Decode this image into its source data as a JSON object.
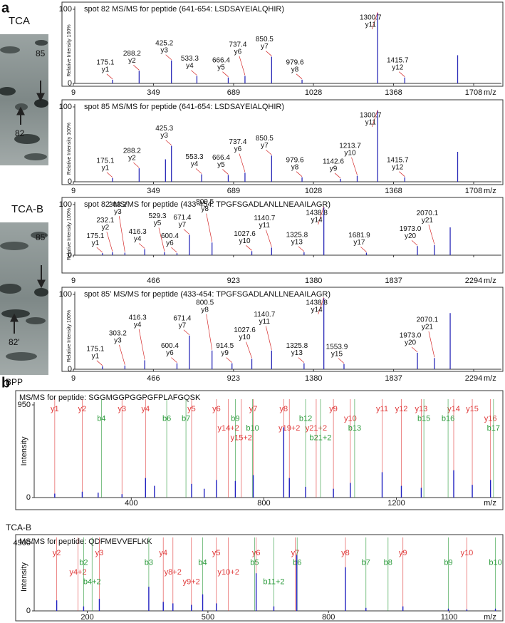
{
  "figure": {
    "panel_a": "a",
    "panel_b": "b",
    "gel_top": {
      "label": "TCA",
      "spots": [
        "85",
        "82"
      ]
    },
    "gel_bottom": {
      "label": "TCA-B",
      "spots": [
        "85'",
        "82'"
      ]
    }
  },
  "chart_data": [
    {
      "type": "spectrum",
      "title": "spot 82 MS/MS for peptide (641-654: LSDSAYEIALQHIR)",
      "xlabel": "m/z",
      "ylabel": "Relative Intensity 100%",
      "color": "#2b2bb8",
      "label_color": "#d42a2a",
      "xlim": [
        9,
        1708
      ],
      "xticks": [
        9,
        349,
        689,
        1028,
        1368,
        1708
      ],
      "ylim": [
        0,
        100
      ],
      "yticks": [
        0,
        100
      ],
      "x": [
        175.1,
        288.2,
        425.2,
        533.3,
        666.4,
        737.4,
        850.5,
        979.6,
        1300.7,
        1415.7,
        1640
      ],
      "x_labels": [
        "175.1",
        "288.2",
        "425.2",
        "533.3",
        "666.4",
        "737.4",
        "850.5",
        "979.6",
        "1300.7",
        "1415.7",
        null
      ],
      "values": [
        5,
        17,
        31,
        10,
        8,
        10,
        36,
        5,
        95,
        8,
        38
      ],
      "annotations": [
        "y1",
        "y2",
        "y3",
        "y4",
        "y5",
        "y6",
        "y7",
        "y8",
        "y11",
        "y12",
        null
      ]
    },
    {
      "type": "spectrum",
      "title": "spot 85 MS/MS for peptide (641-654: LSDSAYEIALQHIR)",
      "xlabel": "m/z",
      "ylabel": "Relative Intensity 100%",
      "color": "#2b2bb8",
      "label_color": "#d42a2a",
      "xlim": [
        9,
        1708
      ],
      "xticks": [
        9,
        349,
        689,
        1028,
        1368,
        1708
      ],
      "ylim": [
        0,
        100
      ],
      "yticks": [
        0,
        100
      ],
      "x": [
        175.1,
        288.2,
        400,
        425.3,
        553.3,
        666.4,
        737.4,
        850.5,
        979.6,
        1142.6,
        1213.7,
        1300.7,
        1415.7,
        1640
      ],
      "x_labels": [
        "175.1",
        "288.2",
        null,
        "425.3",
        "553.3",
        "666.4",
        "737.4",
        "850.5",
        "979.6",
        "1142.6",
        "1213.7",
        "1300.7",
        "1415.7",
        null
      ],
      "values": [
        5,
        18,
        30,
        48,
        10,
        9,
        12,
        35,
        6,
        4,
        8,
        95,
        6,
        40
      ],
      "annotations": [
        "y1",
        "y2",
        null,
        "y3",
        "y4",
        "y5",
        "y6",
        "y7",
        "y8",
        "y9",
        "y10",
        "y11",
        "y12",
        null
      ]
    },
    {
      "type": "spectrum",
      "title": "spot 82’ MS/MS for peptide (433-454: TPGFSGADLANLLNEAAILAGR)",
      "xlabel": "m/z",
      "ylabel": "Relative Intensity 100%",
      "color": "#2b2bb8",
      "label_color": "#d42a2a",
      "xlim": [
        9,
        2294
      ],
      "xticks": [
        9,
        466,
        923,
        1380,
        1837,
        2294
      ],
      "ylim": [
        0,
        100
      ],
      "yticks": [
        0,
        100
      ],
      "x": [
        175.1,
        232.1,
        303.2,
        416.3,
        529.3,
        600.4,
        671.4,
        800.5,
        1027.6,
        1140.7,
        1325.8,
        1438.8,
        1681.9,
        1973.0,
        2070.1,
        2160
      ],
      "x_labels": [
        "175.1",
        "232.1",
        "303.2",
        "416.3",
        "529.3",
        "600.4",
        "671.4",
        "800.5",
        "1027.6",
        "1140.7",
        "1325.8",
        "1438.8",
        "1681.9",
        "1973.0",
        "2070.1",
        null
      ],
      "values": [
        4,
        6,
        5,
        12,
        6,
        4,
        40,
        25,
        8,
        15,
        6,
        95,
        5,
        18,
        20,
        55
      ],
      "annotations": [
        "y1",
        "y2",
        "y3",
        "y4",
        "y5",
        "y6",
        "y7",
        "y8",
        "y10",
        "y11",
        "y13",
        "y14",
        "y17",
        "y20",
        "y21",
        null
      ]
    },
    {
      "type": "spectrum",
      "title": "spot 85’ MS/MS for peptide (433-454: TPGFSGADLANLLNEAAILAGR)",
      "xlabel": "m/z",
      "ylabel": "Relative Intensity 100%",
      "color": "#2b2bb8",
      "label_color": "#d42a2a",
      "xlim": [
        9,
        2294
      ],
      "xticks": [
        9,
        466,
        923,
        1380,
        1837,
        2294
      ],
      "ylim": [
        0,
        100
      ],
      "yticks": [
        0,
        100
      ],
      "x": [
        175.1,
        303.2,
        416.3,
        600.4,
        671.4,
        800.5,
        914.5,
        1027.6,
        1140.7,
        1325.8,
        1438.8,
        1553.9,
        1973.0,
        2070.1,
        2160
      ],
      "x_labels": [
        "175.1",
        "303.2",
        "416.3",
        "600.4",
        "671.4",
        "800.5",
        "914.5",
        "1027.6",
        "1140.7",
        "1325.8",
        "1438.8",
        "1553.9",
        "1973.0",
        "2070.1",
        null
      ],
      "values": [
        4,
        5,
        12,
        8,
        45,
        25,
        8,
        14,
        25,
        8,
        95,
        7,
        22,
        15,
        75
      ],
      "annotations": [
        "y1",
        "y3",
        "y4",
        "y6",
        "y7",
        "y8",
        "y9",
        "y10",
        "y11",
        "y13",
        "y14",
        "y15",
        "y20",
        "y21",
        null
      ]
    },
    {
      "type": "ion_spectrum",
      "sample": "BPP",
      "title": "MS/MS for peptide: SGGMGGPGGPGFPLAFGQSK",
      "xlabel": "m/z",
      "ylabel": "Intensity",
      "color": "#2020c0",
      "xlim": [
        107,
        1517
      ],
      "xticks": [
        400,
        800,
        1200
      ],
      "ylim": [
        0,
        950
      ],
      "yticks": [
        0,
        950
      ],
      "x": [
        169,
        252,
        300,
        372,
        443,
        470,
        582,
        620,
        657,
        714,
        768,
        860,
        877,
        926,
        1010,
        1061,
        1157,
        1215,
        1275,
        1373,
        1429,
        1484
      ],
      "values": [
        40,
        60,
        50,
        35,
        200,
        120,
        140,
        90,
        180,
        170,
        230,
        720,
        200,
        110,
        90,
        150,
        260,
        120,
        100,
        280,
        130,
        180
      ],
      "y_ions": {
        "color": "#e03a3a",
        "labels": [
          "y1",
          "y2",
          "y3",
          "y4",
          "y5",
          "y6",
          "y14+2",
          "y15+2",
          "y7",
          "y8",
          "y19+2",
          "y21+2",
          "y9",
          "y10",
          "y11",
          "y12",
          "y13",
          "y14",
          "y15",
          "y16"
        ],
        "x": [
          169,
          252,
          372,
          443,
          582,
          657,
          693,
          732,
          768,
          860,
          877,
          958,
          1010,
          1061,
          1157,
          1215,
          1275,
          1373,
          1429,
          1484
        ]
      },
      "b_ions": {
        "color": "#2a9a3a",
        "labels": [
          "b4",
          "b6",
          "b7",
          "b9",
          "b10",
          "b12",
          "b21+2",
          "b13",
          "b15",
          "b16",
          "b17"
        ],
        "x": [
          310,
          507,
          565,
          714,
          766,
          926,
          971,
          1074,
          1283,
          1356,
          1493
        ]
      }
    },
    {
      "type": "ion_spectrum",
      "sample": "TCA-B",
      "title": "MS/MS for peptide: QDFMEVVEFLKK",
      "xlabel": "m/z",
      "ylabel": "Intensity",
      "color": "#2020c0",
      "xlim": [
        68,
        1230
      ],
      "xticks": [
        200,
        500,
        800,
        1100
      ],
      "ylim": [
        0,
        4500
      ],
      "yticks": [
        0,
        4500
      ],
      "x": [
        124,
        191,
        230,
        353,
        389,
        413,
        459,
        487,
        521,
        620,
        664,
        721,
        842,
        893,
        985,
        1098,
        1144,
        1215
      ],
      "values": [
        700,
        300,
        800,
        1600,
        600,
        500,
        400,
        1100,
        500,
        2500,
        300,
        3700,
        2900,
        200,
        300,
        150,
        100,
        150
      ],
      "y_ions": {
        "color": "#e03a3a",
        "labels": [
          "y2",
          "y4+2",
          "y3",
          "y4",
          "y8+2",
          "y9+2",
          "y5",
          "y10+2",
          "y6",
          "y7",
          "y8",
          "y9",
          "y10"
        ],
        "x": [
          124,
          177,
          230,
          389,
          413,
          459,
          521,
          551,
          620,
          717,
          842,
          985,
          1144
        ]
      },
      "b_ions": {
        "color": "#2a9a3a",
        "labels": [
          "b2",
          "b4+2",
          "b3",
          "b4",
          "b5",
          "b11+2",
          "b6",
          "b7",
          "b8",
          "b9",
          "b10"
        ],
        "x": [
          191,
          212,
          353,
          487,
          616,
          664,
          722,
          893,
          948,
          1098,
          1215
        ]
      }
    }
  ]
}
